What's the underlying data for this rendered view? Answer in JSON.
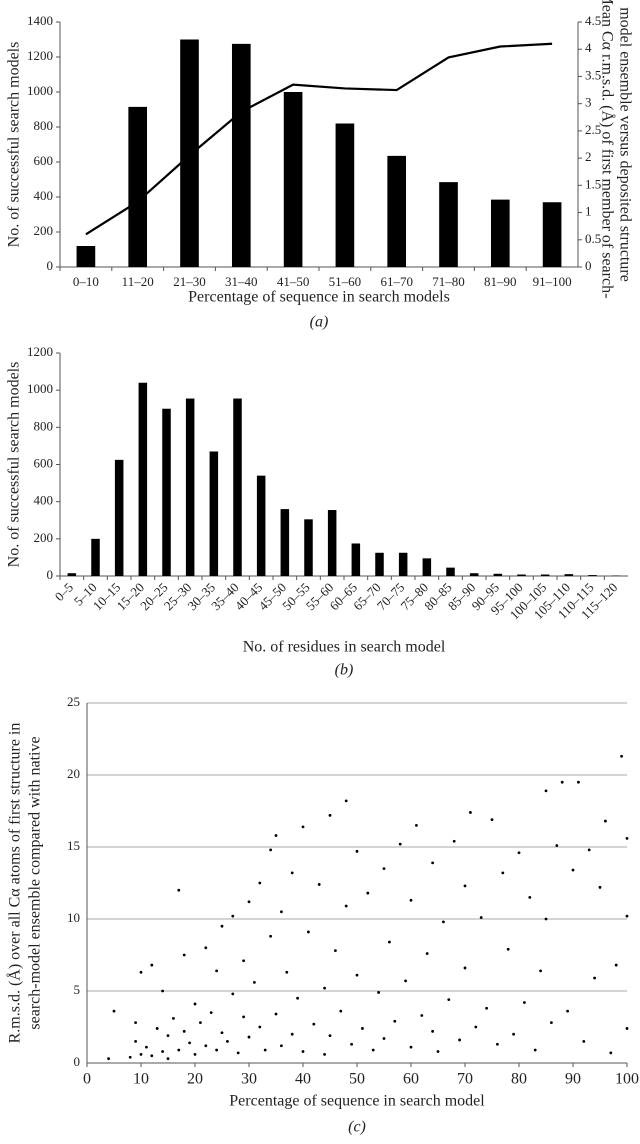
{
  "chart_data": [
    {
      "type": "bar",
      "categories": [
        "0–10",
        "11–20",
        "21–30",
        "31–40",
        "41–50",
        "51–60",
        "61–70",
        "71–80",
        "81–90",
        "91–100"
      ],
      "series": [
        {
          "color": "#000000",
          "values": [
            120,
            915,
            1300,
            1275,
            1000,
            820,
            635,
            485,
            385,
            370
          ]
        },
        {
          "color": "#000000",
          "type": "line",
          "axis": "y2",
          "values": [
            0.6,
            1.2,
            2.05,
            2.85,
            3.35,
            3.28,
            3.25,
            3.85,
            4.05,
            4.1
          ]
        }
      ],
      "ylim": [
        0,
        1400
      ],
      "yticks": [
        0,
        200,
        400,
        600,
        800,
        1000,
        1200,
        1400
      ],
      "y2lim": [
        0,
        4.5
      ],
      "y2ticks": [
        0,
        0.5,
        1,
        1.5,
        2,
        2.5,
        3,
        3.5,
        4,
        4.5
      ],
      "xlabel": "Percentage of sequence in search models",
      "ylabel": "No. of successful search models",
      "y2label": [
        "Mean Cα r.m.s.d. (Å) of first member of search-",
        "model ensemble versus deposited structure"
      ],
      "caption": "(a)"
    },
    {
      "type": "bar",
      "categories": [
        "0–5",
        "5–10",
        "10–15",
        "15–20",
        "20–25",
        "25–30",
        "30–35",
        "35–40",
        "40–45",
        "45–50",
        "50–55",
        "55–60",
        "60–65",
        "65–70",
        "70–75",
        "75–80",
        "80–85",
        "85–90",
        "90–95",
        "95–100",
        "100–105",
        "105–110",
        "110–115",
        "115–120"
      ],
      "series": [
        {
          "color": "#000000",
          "values": [
            15,
            200,
            625,
            1040,
            900,
            955,
            670,
            955,
            540,
            360,
            305,
            355,
            175,
            125,
            125,
            95,
            45,
            15,
            12,
            8,
            8,
            10,
            5,
            2
          ]
        }
      ],
      "ylim": [
        0,
        1200
      ],
      "yticks": [
        0,
        200,
        400,
        600,
        800,
        1000,
        1200
      ],
      "xlabel": "No. of residues in search model",
      "ylabel": "No. of successful search models",
      "caption": "(b)"
    },
    {
      "type": "scatter",
      "x": [
        4,
        5,
        8,
        9,
        9,
        10,
        10,
        11,
        12,
        12,
        13,
        14,
        14,
        15,
        15,
        16,
        17,
        17,
        18,
        18,
        19,
        20,
        20,
        21,
        22,
        22,
        23,
        24,
        24,
        25,
        25,
        26,
        27,
        27,
        28,
        29,
        29,
        30,
        30,
        31,
        32,
        32,
        33,
        34,
        34,
        35,
        35,
        36,
        36,
        37,
        38,
        38,
        39,
        40,
        40,
        41,
        42,
        43,
        44,
        44,
        45,
        45,
        46,
        47,
        48,
        48,
        49,
        50,
        50,
        51,
        52,
        53,
        54,
        55,
        55,
        56,
        57,
        58,
        59,
        60,
        60,
        61,
        62,
        63,
        64,
        64,
        65,
        66,
        67,
        68,
        69,
        70,
        70,
        71,
        72,
        73,
        74,
        75,
        76,
        77,
        78,
        79,
        80,
        81,
        82,
        83,
        84,
        85,
        85,
        86,
        87,
        88,
        89,
        90,
        91,
        92,
        93,
        94,
        95,
        96,
        97,
        98,
        99,
        100,
        100,
        100
      ],
      "values": [
        0.3,
        3.6,
        0.4,
        1.5,
        2.8,
        0.6,
        6.3,
        1.1,
        0.5,
        6.8,
        2.4,
        0.8,
        5.0,
        1.9,
        0.3,
        3.1,
        0.9,
        12.0,
        2.2,
        7.5,
        1.4,
        4.1,
        0.6,
        2.8,
        8.0,
        1.2,
        3.5,
        0.9,
        6.4,
        2.1,
        9.5,
        1.5,
        4.8,
        10.2,
        0.7,
        3.2,
        7.1,
        11.2,
        1.8,
        5.6,
        2.5,
        12.5,
        0.9,
        8.8,
        14.8,
        3.4,
        15.8,
        1.2,
        10.5,
        6.3,
        2.0,
        13.2,
        4.5,
        0.8,
        16.4,
        9.1,
        2.7,
        12.4,
        5.2,
        0.6,
        17.2,
        1.9,
        7.8,
        3.6,
        10.9,
        18.2,
        1.3,
        6.1,
        14.7,
        2.4,
        11.8,
        0.9,
        4.9,
        13.5,
        1.7,
        8.4,
        2.9,
        15.2,
        5.7,
        1.1,
        11.3,
        16.5,
        3.3,
        7.6,
        2.2,
        13.9,
        0.8,
        9.8,
        4.4,
        15.4,
        1.6,
        12.3,
        6.6,
        17.4,
        2.5,
        10.1,
        3.8,
        16.9,
        1.3,
        13.2,
        7.9,
        2.0,
        14.6,
        4.2,
        11.5,
        0.9,
        6.4,
        18.9,
        10.0,
        2.8,
        15.1,
        19.5,
        3.6,
        13.4,
        19.5,
        1.5,
        14.8,
        5.9,
        12.2,
        16.8,
        0.7,
        6.8,
        21.3,
        15.6,
        2.4,
        10.2
      ],
      "color": "#000000",
      "xlim": [
        0,
        100
      ],
      "xticks": [
        0,
        10,
        20,
        30,
        40,
        50,
        60,
        70,
        80,
        90,
        100
      ],
      "ylim": [
        0,
        25
      ],
      "yticks": [
        0,
        5,
        10,
        15,
        20,
        25
      ],
      "grid": true,
      "xlabel": "Percentage of sequence in search model",
      "ylabel": [
        "R.m.s.d. (Å) over all Cα atoms of first structure in",
        "search-model ensemble compared with native"
      ],
      "caption": "(c)"
    }
  ]
}
